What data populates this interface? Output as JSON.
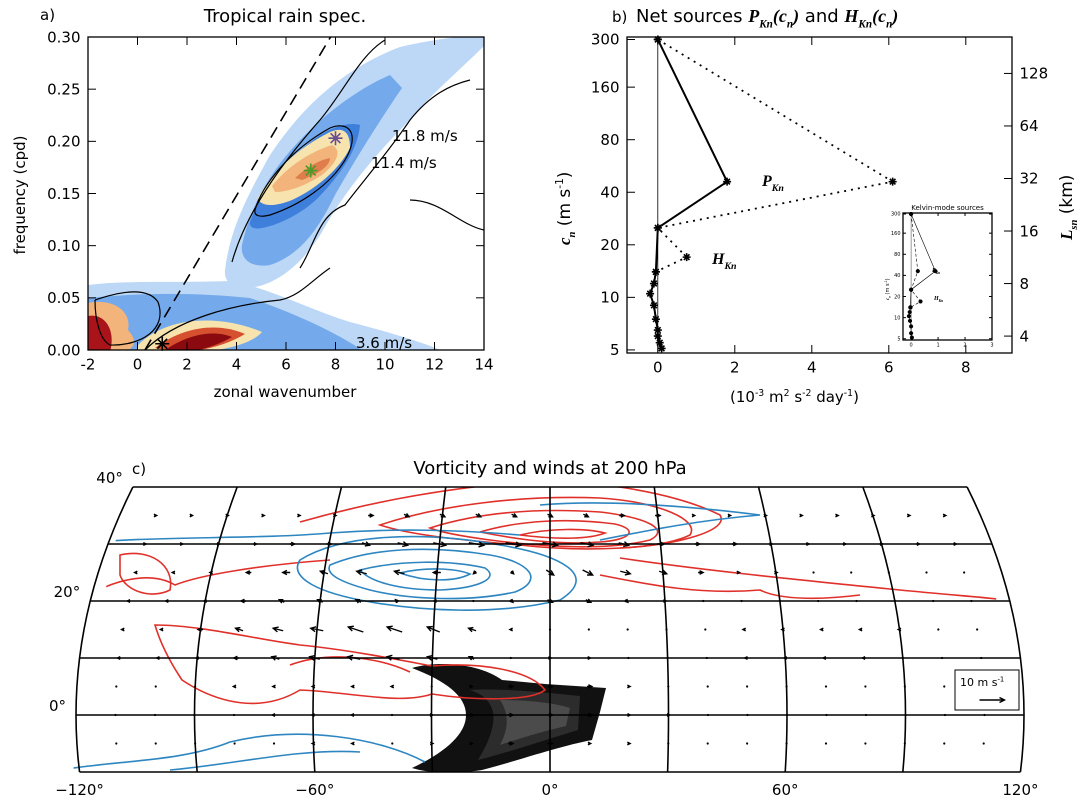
{
  "chart_data": [
    {
      "type": "contour",
      "label": "a)",
      "title": "Tropical rain spec.",
      "xlabel": "zonal wavenumber",
      "ylabel": "frequency (cpd)",
      "xlim": [
        -2,
        14
      ],
      "xticks": [
        -2,
        0,
        2,
        4,
        6,
        8,
        10,
        12,
        14
      ],
      "ylim": [
        0,
        0.3
      ],
      "yticks": [
        {
          "value": 0,
          "label": "0.00"
        },
        {
          "value": 0.05,
          "label": "0.05"
        },
        {
          "value": 0.1,
          "label": "0.10"
        },
        {
          "value": 0.15,
          "label": "0.15"
        },
        {
          "value": 0.2,
          "label": "0.20"
        },
        {
          "value": 0.25,
          "label": "0.25"
        },
        {
          "value": 0.3,
          "label": "0.30"
        }
      ],
      "dispersion_line": {
        "x": [
          0.3,
          7.8
        ],
        "y": [
          0,
          0.3
        ]
      },
      "peaks": {
        "x": [
          8,
          7,
          1
        ],
        "y": [
          0.203,
          0.172,
          0.006
        ],
        "colors": [
          "#6a4c93",
          "#4c9a2a",
          "#000000"
        ]
      },
      "annotations": [
        {
          "text": "11.8 m/s",
          "color": "#5e5a84"
        },
        {
          "text": "11.4 m/s",
          "color": "#4a7a3a"
        },
        {
          "text": "3.6 m/s",
          "color": "#000000"
        }
      ]
    },
    {
      "type": "line",
      "label": "b)",
      "title": [
        {
          "text": "Net sources "
        },
        {
          "text": "P",
          "style": "it"
        },
        {
          "text": "Kn",
          "style": "itsub"
        },
        {
          "text": "(",
          "style": "it"
        },
        {
          "text": "c",
          "style": "it"
        },
        {
          "text": "n",
          "style": "itsub"
        },
        {
          "text": ")",
          "style": "it"
        },
        {
          "text": " and "
        },
        {
          "text": "H",
          "style": "it"
        },
        {
          "text": "Kn",
          "style": "itsub"
        },
        {
          "text": "(",
          "style": "it"
        },
        {
          "text": "c",
          "style": "it"
        },
        {
          "text": "n",
          "style": "itsub"
        },
        {
          "text": ")",
          "style": "it"
        }
      ],
      "xlabel": [
        {
          "text": "(10"
        },
        {
          "text": "-3",
          "style": "sup"
        },
        {
          "text": " m"
        },
        {
          "text": "2",
          "style": "sup"
        },
        {
          "text": " s"
        },
        {
          "text": "-2",
          "style": "sup"
        },
        {
          "text": " day"
        },
        {
          "text": "-1",
          "style": "sup"
        },
        {
          "text": ")"
        }
      ],
      "ylabel": [
        {
          "text": "c",
          "style": "it"
        },
        {
          "text": "n",
          "style": "itsub"
        },
        {
          "text": " (m s"
        },
        {
          "text": "-1",
          "style": "sup"
        },
        {
          "text": ")"
        }
      ],
      "y2label": [
        {
          "text": "L",
          "style": "it"
        },
        {
          "text": "sn",
          "style": "itsub"
        },
        {
          "text": " (km)"
        }
      ],
      "xlim": [
        -0.8,
        9.2
      ],
      "xticks": [
        0,
        2,
        4,
        6,
        8
      ],
      "yscale": "log",
      "ylim": [
        4.8,
        310
      ],
      "yticks": [
        5,
        10,
        20,
        40,
        80,
        160,
        300
      ],
      "y2lim": [
        3.2,
        207
      ],
      "y2ticks": [
        4,
        8,
        16,
        32,
        64,
        128
      ],
      "zero_line": true,
      "series": [
        {
          "style": "solid",
          "x": [
            0,
            1.8,
            0,
            -0.05,
            -0.1,
            -0.2,
            -0.1,
            -0.05,
            0,
            0,
            0.05,
            0.1
          ],
          "y": [
            300,
            46,
            25,
            14,
            12,
            10.5,
            9,
            7.5,
            6.5,
            6,
            5.5,
            5.1
          ]
        },
        {
          "style": "dotted",
          "x": [
            0,
            6.1,
            0,
            0.75,
            -0.05
          ],
          "y": [
            300,
            46,
            25,
            17,
            14
          ]
        }
      ],
      "annotations": [
        [
          {
            "text": "P",
            "style": "it"
          },
          {
            "text": "Kn",
            "style": "itsub"
          }
        ],
        [
          {
            "text": "H",
            "style": "it"
          },
          {
            "text": "Kn",
            "style": "itsub"
          }
        ]
      ]
    },
    {
      "type": "map",
      "label": "c)",
      "title": "Vorticity and winds at 200 hPa",
      "xlim": [
        -120,
        120
      ],
      "xticks": [
        {
          "value": -120,
          "label": "−120°"
        },
        {
          "value": -60,
          "label": "−60°"
        },
        {
          "value": 0,
          "label": "0°"
        },
        {
          "value": 60,
          "label": "60°"
        },
        {
          "value": 120,
          "label": "120°"
        }
      ],
      "ylim": [
        -10,
        40
      ],
      "yticks": [
        {
          "value": 0,
          "label": "0°"
        },
        {
          "value": 20,
          "label": "20°"
        },
        {
          "value": 40,
          "label": "40°"
        }
      ],
      "xgrid": [
        -90,
        -60,
        -30,
        0,
        30,
        60,
        90
      ],
      "ygrid": [
        0,
        10,
        20,
        30
      ],
      "lons": [
        -110,
        -100,
        -90,
        -80,
        -70,
        -60,
        -50,
        -40,
        -30,
        -20,
        -10,
        0,
        10,
        20,
        30,
        40,
        50,
        60,
        70,
        80,
        90,
        100,
        110
      ],
      "lats": [
        35,
        30,
        25,
        20,
        15,
        10,
        5,
        0,
        -5
      ],
      "u": [
        [
          1,
          1,
          1,
          1,
          1,
          1,
          2,
          2,
          2,
          2,
          2,
          2,
          2,
          2,
          2,
          1,
          1,
          1,
          1,
          1,
          1,
          1,
          1
        ],
        [
          1,
          1,
          1,
          1,
          2,
          2,
          3,
          4,
          5,
          6,
          6,
          6,
          5,
          4,
          3,
          2,
          2,
          1,
          1,
          1,
          1,
          1,
          1
        ],
        [
          -1,
          -1,
          -1,
          -2,
          -3,
          -3,
          -4,
          -4,
          -3,
          -1,
          1,
          3,
          4,
          4,
          3,
          2,
          1,
          1,
          0,
          0,
          0,
          0,
          0
        ],
        [
          -1,
          -1,
          -1,
          -2,
          -2,
          -2,
          -2,
          -1,
          -1,
          0,
          1,
          2,
          2,
          1,
          1,
          0,
          0,
          0,
          0,
          0,
          0,
          0,
          0
        ],
        [
          -1,
          -1,
          -2,
          -3,
          -4,
          -5,
          -6,
          -6,
          -5,
          -3,
          -1,
          0,
          0,
          0,
          0,
          0,
          -1,
          -1,
          -1,
          -1,
          -1,
          0,
          0
        ],
        [
          -1,
          -1,
          -1,
          -2,
          -3,
          -4,
          -5,
          -5,
          -4,
          -2,
          0,
          1,
          1,
          0,
          0,
          0,
          -1,
          -1,
          -1,
          -1,
          0,
          0,
          0
        ],
        [
          0,
          0,
          0,
          -1,
          -1,
          -1,
          -1,
          -1,
          0,
          1,
          2,
          2,
          2,
          1,
          0,
          0,
          0,
          0,
          0,
          0,
          0,
          0,
          0
        ],
        [
          0,
          0,
          0,
          0,
          -1,
          -1,
          -1,
          0,
          1,
          2,
          2,
          2,
          2,
          1,
          1,
          0,
          0,
          0,
          0,
          0,
          0,
          0,
          0
        ],
        [
          0,
          0,
          0,
          0,
          0,
          -1,
          -1,
          0,
          1,
          1,
          2,
          2,
          1,
          1,
          0,
          0,
          0,
          0,
          0,
          0,
          0,
          0,
          0
        ]
      ],
      "v": [
        [
          0,
          0,
          0,
          0,
          0,
          0,
          0,
          -1,
          -1,
          -1,
          -1,
          -1,
          -1,
          0,
          0,
          0,
          0,
          0,
          0,
          0,
          0,
          0,
          0
        ],
        [
          0,
          0,
          0,
          0,
          0,
          0,
          -1,
          -1,
          -1,
          -1,
          -1,
          -1,
          -1,
          -1,
          0,
          0,
          0,
          0,
          0,
          0,
          0,
          0,
          0
        ],
        [
          0,
          0,
          0,
          0,
          0,
          1,
          1,
          1,
          0,
          -1,
          -1,
          -2,
          -2,
          -1,
          -1,
          0,
          0,
          0,
          0,
          0,
          0,
          0,
          0
        ],
        [
          0,
          0,
          0,
          0,
          1,
          1,
          1,
          1,
          0,
          0,
          -1,
          -1,
          -1,
          -1,
          0,
          0,
          0,
          0,
          0,
          0,
          0,
          0,
          0
        ],
        [
          0,
          0,
          0,
          1,
          1,
          1,
          2,
          2,
          2,
          1,
          0,
          0,
          0,
          0,
          0,
          0,
          0,
          0,
          0,
          0,
          0,
          0,
          0
        ],
        [
          0,
          0,
          0,
          0,
          1,
          1,
          1,
          1,
          1,
          1,
          0,
          0,
          0,
          0,
          0,
          0,
          0,
          0,
          0,
          0,
          0,
          0,
          0
        ],
        [
          0,
          0,
          0,
          0,
          0,
          0,
          0,
          0,
          0,
          0,
          0,
          0,
          0,
          0,
          0,
          0,
          0,
          0,
          0,
          0,
          0,
          0,
          0
        ],
        [
          0,
          0,
          0,
          0,
          0,
          0,
          0,
          0,
          0,
          0,
          0,
          0,
          0,
          0,
          0,
          0,
          0,
          0,
          0,
          0,
          0,
          0,
          0
        ],
        [
          0,
          0,
          0,
          0,
          0,
          0,
          0,
          0,
          0,
          0,
          0,
          0,
          0,
          0,
          0,
          0,
          0,
          0,
          0,
          0,
          0,
          0,
          0
        ]
      ],
      "ref_vector": {
        "value": 10,
        "label": [
          {
            "text": "10 m s"
          },
          {
            "text": "-1",
            "style": "sup"
          }
        ]
      }
    },
    {
      "type": "line",
      "title": "Kelvin-mode sources",
      "ylabel": [
        {
          "text": "c",
          "style": "it"
        },
        {
          "text": "n",
          "style": "itsub"
        },
        {
          "text": " (m s"
        },
        {
          "text": "-1",
          "style": "sup"
        },
        {
          "text": ")"
        }
      ],
      "xlim": [
        -0.3,
        3
      ],
      "xticks": [
        0,
        1,
        2,
        3
      ],
      "yscale": "log",
      "ylim": [
        4.8,
        310
      ],
      "yticks": [
        5,
        10,
        20,
        40,
        80,
        160,
        300
      ],
      "zero_line": true,
      "series": [
        {
          "style": "solid",
          "x": [
            0,
            0.9,
            0,
            -0.03,
            -0.05,
            -0.08,
            -0.04,
            0,
            0,
            0.03
          ],
          "y": [
            300,
            46,
            25,
            14,
            12,
            10.5,
            9,
            7.5,
            6,
            5.2
          ]
        },
        {
          "style": "dashed",
          "x": [
            0,
            0.25,
            0,
            0.35,
            -0.02
          ],
          "y": [
            300,
            46,
            25,
            17,
            14
          ]
        }
      ],
      "annotations": [
        [
          {
            "text": "P",
            "style": "it"
          },
          {
            "text": "Kn",
            "style": "itsub"
          }
        ],
        [
          {
            "text": "H",
            "style": "it"
          },
          {
            "text": "Kn",
            "style": "itsub"
          }
        ]
      ]
    }
  ]
}
